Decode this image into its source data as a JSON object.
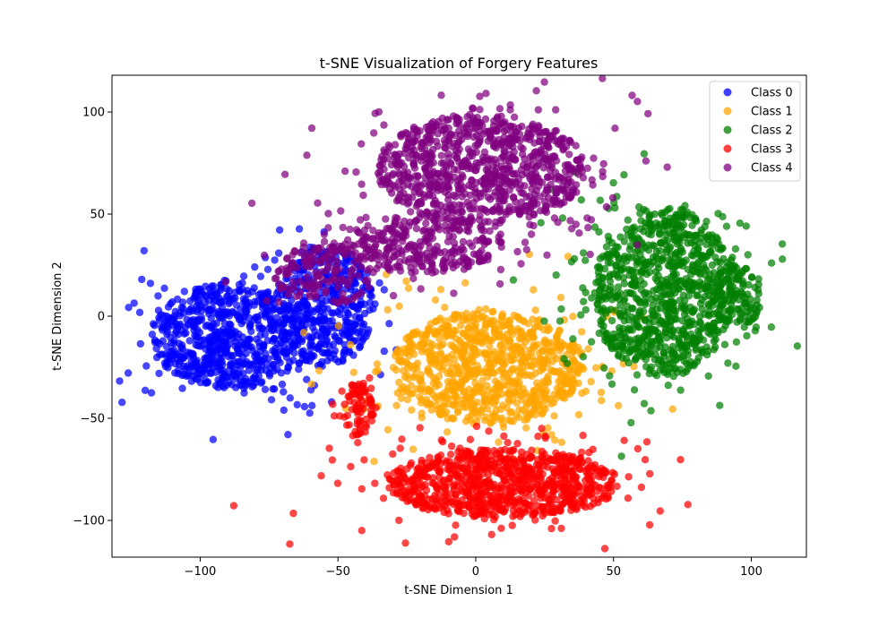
{
  "chart_data": {
    "type": "scatter",
    "title": "t-SNE Visualization of Forgery Features",
    "xlabel": "t-SNE Dimension 1",
    "ylabel": "t-SNE Dimension 2",
    "xlim": [
      -132,
      120
    ],
    "ylim": [
      -118,
      118
    ],
    "xticks": [
      -100,
      -50,
      0,
      50,
      100
    ],
    "yticks": [
      -100,
      -50,
      0,
      50,
      100
    ],
    "xtick_labels": [
      "−100",
      "−50",
      "0",
      "50",
      "100"
    ],
    "ytick_labels": [
      "−100",
      "−50",
      "0",
      "50",
      "100"
    ],
    "grid": false,
    "legend": "top-right",
    "series": [
      {
        "name": "Class 0",
        "color": "#0000ff",
        "clusters": [
          {
            "cx": -90,
            "cy": -10,
            "rx": 28,
            "ry": 26,
            "n": 700
          },
          {
            "cx": -55,
            "cy": 5,
            "rx": 18,
            "ry": 30,
            "n": 420
          }
        ]
      },
      {
        "name": "Class 1",
        "color": "#ffa500",
        "clusters": [
          {
            "cx": 5,
            "cy": -25,
            "rx": 35,
            "ry": 28,
            "n": 900
          }
        ]
      },
      {
        "name": "Class 2",
        "color": "#008000",
        "clusters": [
          {
            "cx": 68,
            "cy": 12,
            "rx": 25,
            "ry": 42,
            "n": 900
          },
          {
            "cx": 95,
            "cy": 10,
            "rx": 10,
            "ry": 15,
            "n": 120
          }
        ]
      },
      {
        "name": "Class 3",
        "color": "#ff0000",
        "clusters": [
          {
            "cx": 10,
            "cy": -82,
            "rx": 42,
            "ry": 17,
            "n": 900
          },
          {
            "cx": -42,
            "cy": -45,
            "rx": 6,
            "ry": 14,
            "n": 80
          }
        ]
      },
      {
        "name": "Class 4",
        "color": "#800080",
        "clusters": [
          {
            "cx": 2,
            "cy": 72,
            "rx": 38,
            "ry": 27,
            "n": 900
          },
          {
            "cx": -20,
            "cy": 35,
            "rx": 30,
            "ry": 14,
            "n": 300
          },
          {
            "cx": -55,
            "cy": 20,
            "rx": 18,
            "ry": 15,
            "n": 150
          }
        ]
      }
    ]
  }
}
